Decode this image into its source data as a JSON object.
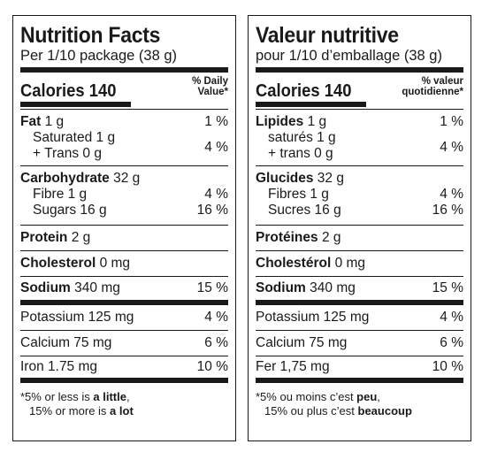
{
  "en": {
    "title": "Nutrition Facts",
    "serving": "Per 1/10 package (38 g)",
    "calories_label": "Calories 140",
    "dv_header_line1": "% Daily",
    "dv_header_line2": "Value*",
    "fat_name": "Fat",
    "fat_amount": "1 g",
    "fat_dv": "1 %",
    "saturated": "Saturated 1 g",
    "trans": "+ Trans 0 g",
    "sat_trans_dv": "4 %",
    "carb_name": "Carbohydrate",
    "carb_amount": "32 g",
    "fibre": "Fibre 1 g",
    "fibre_dv": "4 %",
    "sugars": "Sugars 16 g",
    "sugars_dv": "16 %",
    "protein_name": "Protein",
    "protein_amount": "2 g",
    "cholesterol_name": "Cholesterol",
    "cholesterol_amount": "0 mg",
    "sodium_name": "Sodium",
    "sodium_amount": "340 mg",
    "sodium_dv": "15 %",
    "potassium": "Potassium 125 mg",
    "potassium_dv": "4 %",
    "calcium": "Calcium 75 mg",
    "calcium_dv": "6 %",
    "iron": "Iron 1.75 mg",
    "iron_dv": "10 %",
    "foot1_prefix": "*5% or less is ",
    "foot1_bold": "a little",
    "foot1_suffix": ",",
    "foot2_prefix": "15% or more is ",
    "foot2_bold": "a lot"
  },
  "fr": {
    "title": "Valeur nutritive",
    "serving": "pour 1/10 d’emballage (38 g)",
    "calories_label": "Calories 140",
    "dv_header_line1": "% valeur",
    "dv_header_line2": "quotidienne*",
    "fat_name": "Lipides",
    "fat_amount": "1 g",
    "fat_dv": "1 %",
    "saturated": "saturés 1 g",
    "trans": "+ trans 0 g",
    "sat_trans_dv": "4 %",
    "carb_name": "Glucides",
    "carb_amount": "32 g",
    "fibre": "Fibres 1 g",
    "fibre_dv": "4 %",
    "sugars": "Sucres 16 g",
    "sugars_dv": "16 %",
    "protein_name": "Protéines",
    "protein_amount": "2 g",
    "cholesterol_name": "Cholestérol",
    "cholesterol_amount": "0 mg",
    "sodium_name": "Sodium",
    "sodium_amount": "340 mg",
    "sodium_dv": "15 %",
    "potassium": "Potassium 125 mg",
    "potassium_dv": "4 %",
    "calcium": "Calcium 75 mg",
    "calcium_dv": "6 %",
    "iron": "Fer 1,75 mg",
    "iron_dv": "10 %",
    "foot1_prefix": "*5% ou moins c’est ",
    "foot1_bold": "peu",
    "foot1_suffix": ",",
    "foot2_prefix": "15% ou plus c’est ",
    "foot2_bold": "beaucoup"
  }
}
